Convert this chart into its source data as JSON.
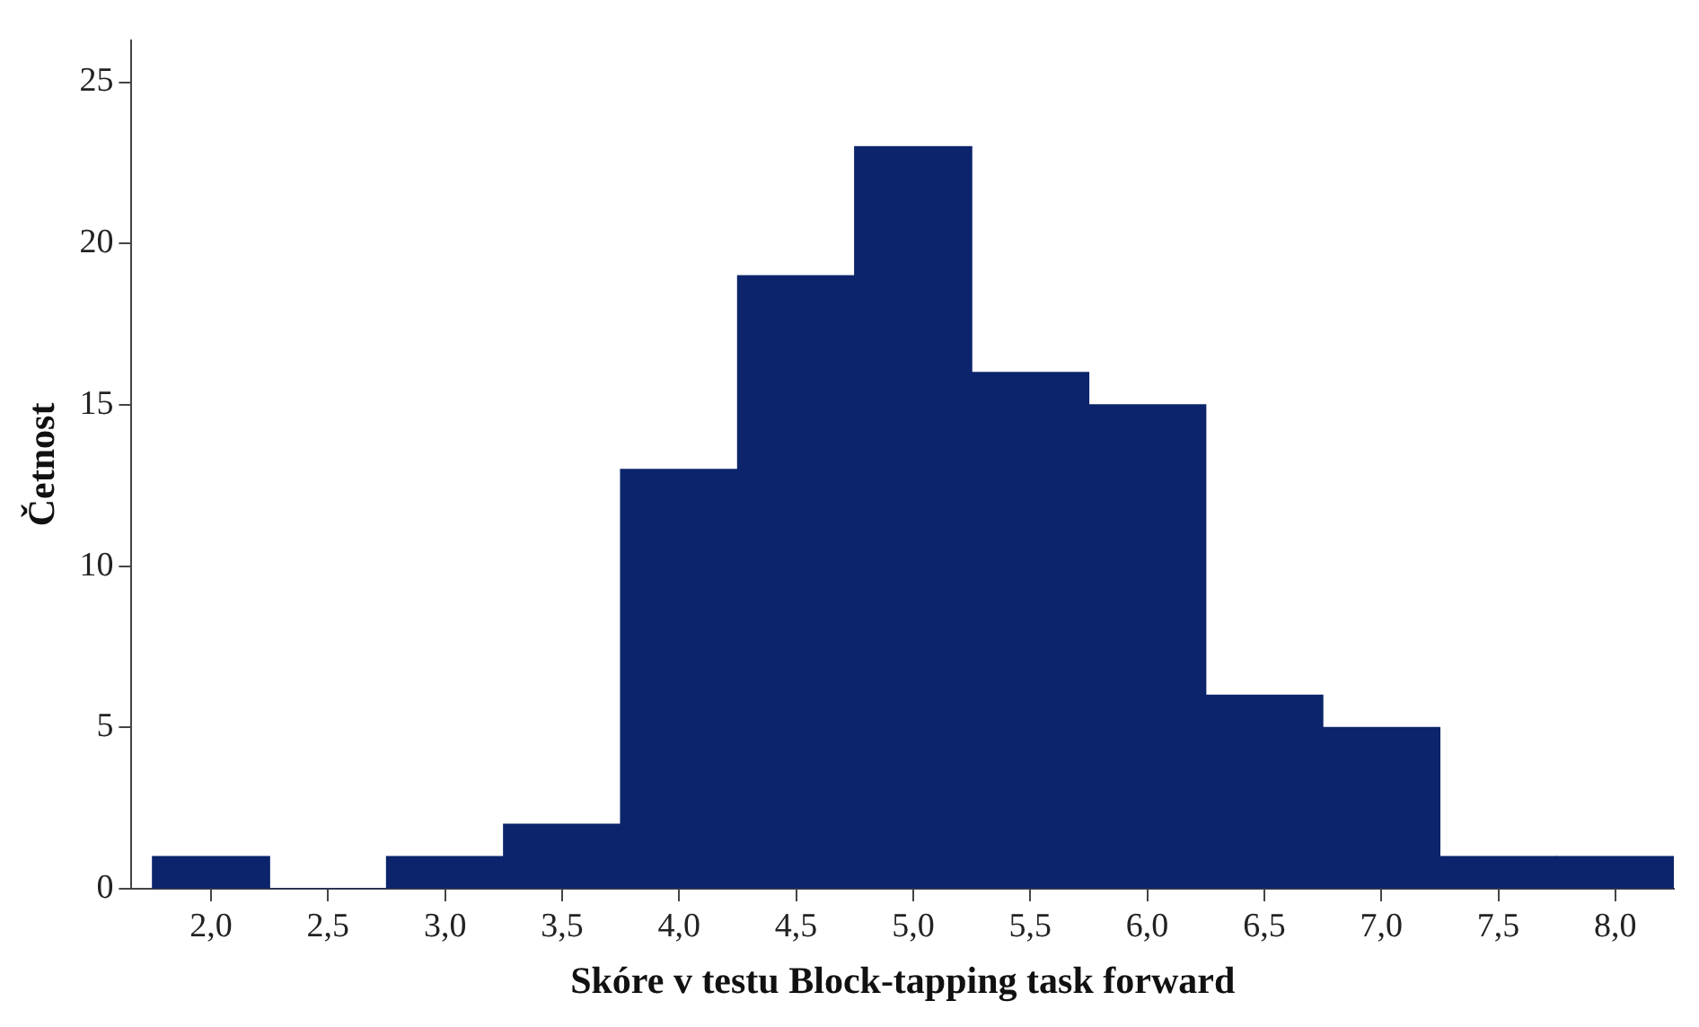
{
  "chart_data": {
    "type": "histogram",
    "xlabel": "Skóre v testu Block-tapping task forward",
    "ylabel": "Četnost",
    "bins": [
      1.75,
      2.25,
      2.75,
      3.25,
      3.75,
      4.25,
      4.75,
      5.25,
      5.75,
      6.25,
      6.75,
      7.25,
      7.75,
      8.25
    ],
    "values": [
      1,
      0,
      1,
      2,
      13,
      19,
      23,
      16,
      15,
      6,
      5,
      1,
      1
    ],
    "color": "#0b246b",
    "xlim": [
      1.66,
      8.25
    ],
    "xticks": [
      {
        "value": 2,
        "label": "2,0"
      },
      {
        "value": 2.5,
        "label": "2,5"
      },
      {
        "value": 3,
        "label": "3,0"
      },
      {
        "value": 3.5,
        "label": "3,5"
      },
      {
        "value": 4,
        "label": "4,0"
      },
      {
        "value": 4.5,
        "label": "4,5"
      },
      {
        "value": 5,
        "label": "5,0"
      },
      {
        "value": 5.5,
        "label": "5,5"
      },
      {
        "value": 6,
        "label": "6,0"
      },
      {
        "value": 6.5,
        "label": "6,5"
      },
      {
        "value": 7,
        "label": "7,0"
      },
      {
        "value": 7.5,
        "label": "7,5"
      },
      {
        "value": 8,
        "label": "8,0"
      }
    ],
    "ylim": [
      0,
      26.3
    ],
    "yticks": [
      0,
      5,
      10,
      15,
      20,
      25
    ]
  }
}
